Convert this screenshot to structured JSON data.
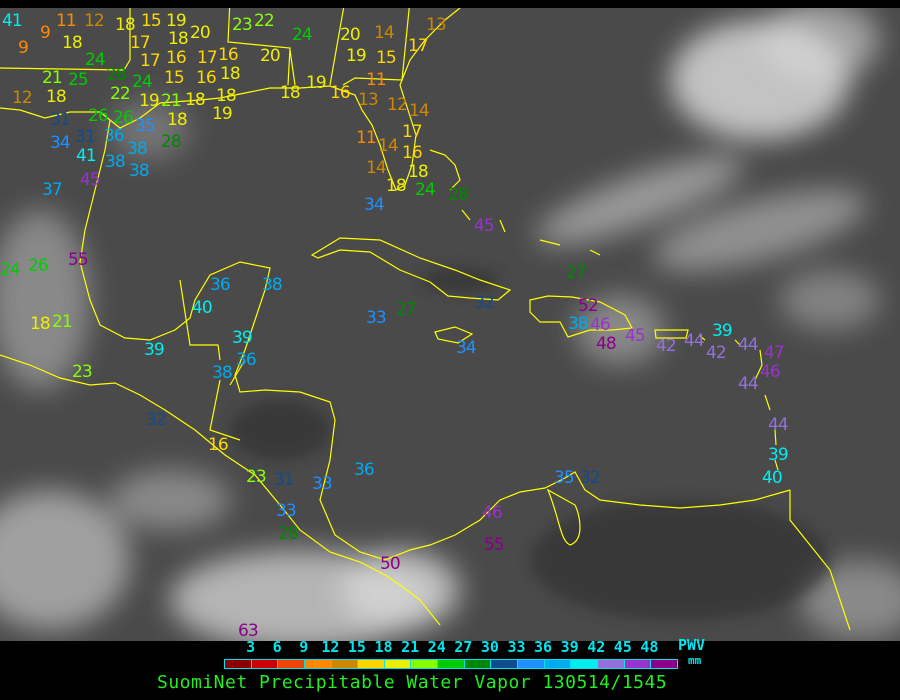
{
  "title": "SuomiNet Precipitable Water Vapor 130514/1545",
  "legend": {
    "label": "PWV",
    "units": "mm",
    "ticks": [
      "3",
      "6",
      "9",
      "12",
      "15",
      "18",
      "21",
      "24",
      "27",
      "30",
      "33",
      "36",
      "39",
      "42",
      "45",
      "48"
    ],
    "colors": [
      "#8b0000",
      "#cc0000",
      "#ee4400",
      "#ff8800",
      "#cc8800",
      "#ffd700",
      "#eeee00",
      "#88ff00",
      "#00cc00",
      "#008800",
      "#104c8c",
      "#1e90ff",
      "#00aaee",
      "#00eeee",
      "#9370db",
      "#9932cc",
      "#8b008b"
    ]
  },
  "map": {
    "coastline_color": "#ffff00",
    "background": "#4a4a4a"
  },
  "stations": [
    {
      "value": "41"
    },
    {
      "value": "9"
    },
    {
      "value": "9"
    },
    {
      "value": "11"
    },
    {
      "value": "12"
    },
    {
      "value": "18"
    },
    {
      "value": "18"
    },
    {
      "value": "15"
    },
    {
      "value": "19"
    },
    {
      "value": "18"
    },
    {
      "value": "20"
    },
    {
      "value": "17"
    },
    {
      "value": "17"
    },
    {
      "value": "16"
    },
    {
      "value": "17"
    },
    {
      "value": "16"
    },
    {
      "value": "18"
    },
    {
      "value": "15"
    },
    {
      "value": "16"
    },
    {
      "value": "18"
    },
    {
      "value": "24"
    },
    {
      "value": "21"
    },
    {
      "value": "25"
    },
    {
      "value": "28"
    },
    {
      "value": "24"
    },
    {
      "value": "19"
    },
    {
      "value": "12"
    },
    {
      "value": "18"
    },
    {
      "value": "22"
    },
    {
      "value": "26"
    },
    {
      "value": "21"
    },
    {
      "value": "18"
    },
    {
      "value": "18"
    },
    {
      "value": "19"
    },
    {
      "value": "26"
    },
    {
      "value": "31"
    },
    {
      "value": "31"
    },
    {
      "value": "35"
    },
    {
      "value": "28"
    },
    {
      "value": "34"
    },
    {
      "value": "36"
    },
    {
      "value": "38"
    },
    {
      "value": "41"
    },
    {
      "value": "38"
    },
    {
      "value": "38"
    },
    {
      "value": "45"
    },
    {
      "value": "37"
    },
    {
      "value": "23"
    },
    {
      "value": "22"
    },
    {
      "value": "24"
    },
    {
      "value": "20"
    },
    {
      "value": "20"
    },
    {
      "value": "19"
    },
    {
      "value": "14"
    },
    {
      "value": "15"
    },
    {
      "value": "13"
    },
    {
      "value": "17"
    },
    {
      "value": "18"
    },
    {
      "value": "19"
    },
    {
      "value": "16"
    },
    {
      "value": "13"
    },
    {
      "value": "12"
    },
    {
      "value": "11"
    },
    {
      "value": "14"
    },
    {
      "value": "17"
    },
    {
      "value": "11"
    },
    {
      "value": "14"
    },
    {
      "value": "16"
    },
    {
      "value": "18"
    },
    {
      "value": "14"
    },
    {
      "value": "18"
    },
    {
      "value": "24"
    },
    {
      "value": "34"
    },
    {
      "value": "28"
    },
    {
      "value": "45"
    },
    {
      "value": "55"
    },
    {
      "value": "24"
    },
    {
      "value": "26"
    },
    {
      "value": "18"
    },
    {
      "value": "21"
    },
    {
      "value": "23"
    },
    {
      "value": "39"
    },
    {
      "value": "40"
    },
    {
      "value": "36"
    },
    {
      "value": "38"
    },
    {
      "value": "39"
    },
    {
      "value": "36"
    },
    {
      "value": "38"
    },
    {
      "value": "32"
    },
    {
      "value": "16"
    },
    {
      "value": "23"
    },
    {
      "value": "31"
    },
    {
      "value": "33"
    },
    {
      "value": "36"
    },
    {
      "value": "33"
    },
    {
      "value": "28"
    },
    {
      "value": "50"
    },
    {
      "value": "63"
    },
    {
      "value": "46"
    },
    {
      "value": "55"
    },
    {
      "value": "33"
    },
    {
      "value": "27"
    },
    {
      "value": "32"
    },
    {
      "value": "34"
    },
    {
      "value": "27"
    },
    {
      "value": "52"
    },
    {
      "value": "38"
    },
    {
      "value": "46"
    },
    {
      "value": "48"
    },
    {
      "value": "45"
    },
    {
      "value": "42"
    },
    {
      "value": "44"
    },
    {
      "value": "39"
    },
    {
      "value": "42"
    },
    {
      "value": "44"
    },
    {
      "value": "47"
    },
    {
      "value": "46"
    },
    {
      "value": "44"
    },
    {
      "value": "44"
    },
    {
      "value": "39"
    },
    {
      "value": "40"
    },
    {
      "value": "35"
    },
    {
      "value": "32"
    }
  ]
}
